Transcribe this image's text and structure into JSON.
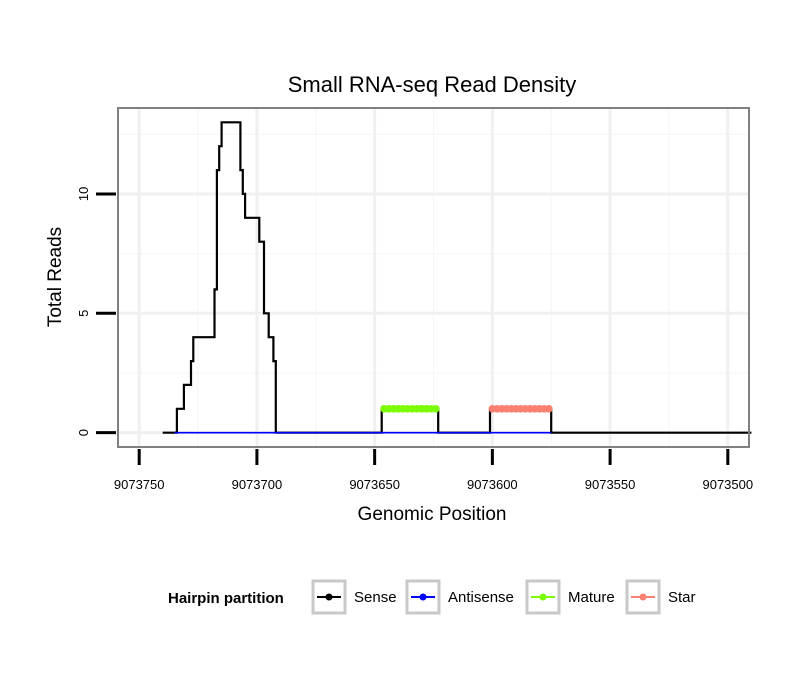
{
  "chart_data": {
    "type": "line",
    "title": "Small RNA-seq Read Density",
    "xlabel": "Genomic Position",
    "ylabel": "Total Reads",
    "xlim": [
      9073759,
      9073491
    ],
    "ylim": [
      -0.6,
      13.6
    ],
    "x_reversed": true,
    "grid": true,
    "x_ticks": [
      9073750,
      9073700,
      9073650,
      9073600,
      9073550,
      9073500
    ],
    "x_tick_labels": [
      "9073750",
      "9073700",
      "9073650",
      "9073600",
      "9073550",
      "9073500"
    ],
    "y_ticks": [
      0,
      5,
      10
    ],
    "y_tick_labels": [
      "0",
      "5",
      "10"
    ],
    "legend": {
      "title": "Hairpin partition",
      "position": "bottom",
      "entries": [
        "Sense",
        "Antisense",
        "Mature",
        "Star"
      ]
    },
    "series": [
      {
        "name": "Sense",
        "color": "#000000",
        "x": [
          9073740,
          9073734,
          9073734,
          9073733,
          9073733,
          9073731,
          9073731,
          9073728,
          9073728,
          9073727,
          9073727,
          9073724,
          9073724,
          9073718,
          9073718,
          9073717,
          9073717,
          9073716,
          9073716,
          9073715,
          9073715,
          9073714,
          9073714,
          9073707,
          9073707,
          9073706,
          9073706,
          9073705,
          9073705,
          9073703,
          9073703,
          9073699,
          9073699,
          9073697,
          9073697,
          9073695,
          9073695,
          9073693,
          9073693,
          9073692,
          9073692,
          9073691,
          9073691,
          9073647,
          9073647,
          9073623,
          9073623,
          9073601,
          9073601,
          9073575,
          9073575,
          9073490
        ],
        "y": [
          0,
          0,
          1,
          1,
          1,
          1,
          2,
          2,
          3,
          3,
          4,
          4,
          4,
          4,
          6,
          6,
          11,
          11,
          12,
          12,
          13,
          13,
          13,
          13,
          11,
          11,
          10,
          10,
          9,
          9,
          9,
          9,
          8,
          8,
          5,
          5,
          4,
          4,
          3,
          3,
          0,
          0,
          0,
          0,
          1,
          1,
          0,
          0,
          1,
          1,
          0,
          0
        ]
      },
      {
        "name": "Antisense",
        "color": "#0000ff",
        "x": [
          9073735,
          9073691,
          9073647,
          9073623,
          9073601,
          9073575
        ],
        "y": [
          0,
          0,
          0,
          0,
          0,
          0
        ]
      },
      {
        "name": "Mature",
        "color": "#7cfc00",
        "x": [
          9073646,
          9073644,
          9073642,
          9073640,
          9073638,
          9073636,
          9073634,
          9073632,
          9073630,
          9073628,
          9073626,
          9073624
        ],
        "y": [
          1,
          1,
          1,
          1,
          1,
          1,
          1,
          1,
          1,
          1,
          1,
          1
        ]
      },
      {
        "name": "Star",
        "color": "#fa8072",
        "x": [
          9073600,
          9073598,
          9073596,
          9073594,
          9073592,
          9073590,
          9073588,
          9073586,
          9073584,
          9073582,
          9073580,
          9073578,
          9073576
        ],
        "y": [
          1,
          1,
          1,
          1,
          1,
          1,
          1,
          1,
          1,
          1,
          1,
          1,
          1
        ]
      }
    ]
  }
}
